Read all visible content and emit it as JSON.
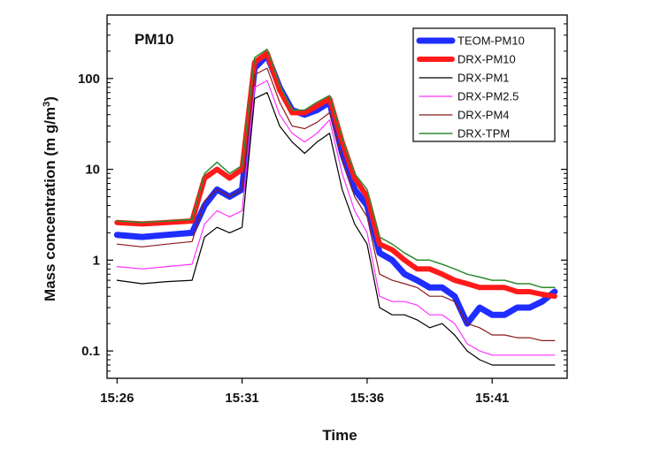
{
  "chart_data": {
    "type": "line",
    "title": "PM10",
    "xlabel": "Time",
    "ylabel": "Mass concentration (mg/m3)",
    "ylabel_main": "Mass concentration (m g/m",
    "ylabel_sup": "3",
    "ylabel_close": ")",
    "yscale": "log",
    "ylim": [
      0.05,
      500
    ],
    "xlim": [
      "15:25.6",
      "15:44.0"
    ],
    "x_ticks": [
      "15:26",
      "15:31",
      "15:36",
      "15:41"
    ],
    "y_ticks": [
      "0.1",
      "1",
      "10",
      "100"
    ],
    "legend_position": "top-right",
    "grid": false,
    "x": [
      "15:26",
      "15:27",
      "15:28",
      "15:29",
      "15:29.5",
      "15:30",
      "15:30.5",
      "15:31",
      "15:31.5",
      "15:32",
      "15:32.5",
      "15:33",
      "15:33.5",
      "15:34",
      "15:34.5",
      "15:35",
      "15:35.5",
      "15:36",
      "15:36.5",
      "15:37",
      "15:37.5",
      "15:38",
      "15:38.5",
      "15:39",
      "15:39.5",
      "15:40",
      "15:40.5",
      "15:41",
      "15:41.5",
      "15:42",
      "15:42.5",
      "15:43",
      "15:43.5"
    ],
    "series": [
      {
        "name": "TEOM-PM10",
        "color": "#1f2dff",
        "width": 7,
        "values": [
          1.9,
          1.8,
          1.9,
          2.0,
          4.0,
          6.0,
          5.0,
          6.0,
          130,
          180,
          80,
          45,
          40,
          45,
          55,
          15,
          6.0,
          4.0,
          1.2,
          1.0,
          0.7,
          0.6,
          0.5,
          0.5,
          0.4,
          0.2,
          0.3,
          0.25,
          0.25,
          0.3,
          0.3,
          0.35,
          0.45
        ]
      },
      {
        "name": "DRX-PM10",
        "color": "#ff1a1a",
        "width": 6,
        "values": [
          2.6,
          2.5,
          2.6,
          2.7,
          8.0,
          10.0,
          8.0,
          10.0,
          150,
          190,
          75,
          42,
          42,
          50,
          60,
          20,
          8.0,
          5.0,
          1.5,
          1.3,
          1.0,
          0.8,
          0.8,
          0.7,
          0.6,
          0.55,
          0.5,
          0.5,
          0.5,
          0.45,
          0.45,
          0.42,
          0.4
        ]
      },
      {
        "name": "DRX-PM1",
        "color": "#000000",
        "width": 1.2,
        "values": [
          0.6,
          0.55,
          0.58,
          0.6,
          1.8,
          2.3,
          2.0,
          2.3,
          60,
          70,
          30,
          20,
          15,
          20,
          25,
          6.0,
          2.5,
          1.5,
          0.3,
          0.25,
          0.25,
          0.22,
          0.18,
          0.2,
          0.15,
          0.1,
          0.08,
          0.07,
          0.07,
          0.07,
          0.07,
          0.07,
          0.07
        ]
      },
      {
        "name": "DRX-PM2.5",
        "color": "#ff33ff",
        "width": 1.2,
        "values": [
          0.85,
          0.8,
          0.85,
          0.9,
          2.5,
          3.5,
          3.0,
          3.5,
          80,
          95,
          40,
          25,
          20,
          25,
          35,
          9.0,
          3.5,
          2.0,
          0.4,
          0.35,
          0.35,
          0.32,
          0.25,
          0.25,
          0.2,
          0.12,
          0.1,
          0.09,
          0.09,
          0.09,
          0.09,
          0.09,
          0.09
        ]
      },
      {
        "name": "DRX-PM4",
        "color": "#8b1a1a",
        "width": 1.2,
        "values": [
          1.5,
          1.4,
          1.5,
          1.6,
          4.5,
          6.0,
          5.0,
          6.0,
          110,
          130,
          55,
          30,
          28,
          33,
          42,
          13,
          5.0,
          3.0,
          0.7,
          0.6,
          0.55,
          0.5,
          0.4,
          0.4,
          0.35,
          0.2,
          0.18,
          0.15,
          0.15,
          0.14,
          0.14,
          0.13,
          0.13
        ]
      },
      {
        "name": "DRX-TPM",
        "color": "#2e8b2e",
        "width": 1.5,
        "values": [
          2.7,
          2.6,
          2.7,
          2.8,
          9.0,
          12.0,
          9.0,
          11.0,
          170,
          210,
          85,
          45,
          45,
          55,
          65,
          22,
          9.0,
          6.0,
          1.8,
          1.5,
          1.2,
          1.0,
          1.0,
          0.9,
          0.8,
          0.7,
          0.65,
          0.6,
          0.6,
          0.55,
          0.55,
          0.5,
          0.5
        ]
      }
    ]
  }
}
